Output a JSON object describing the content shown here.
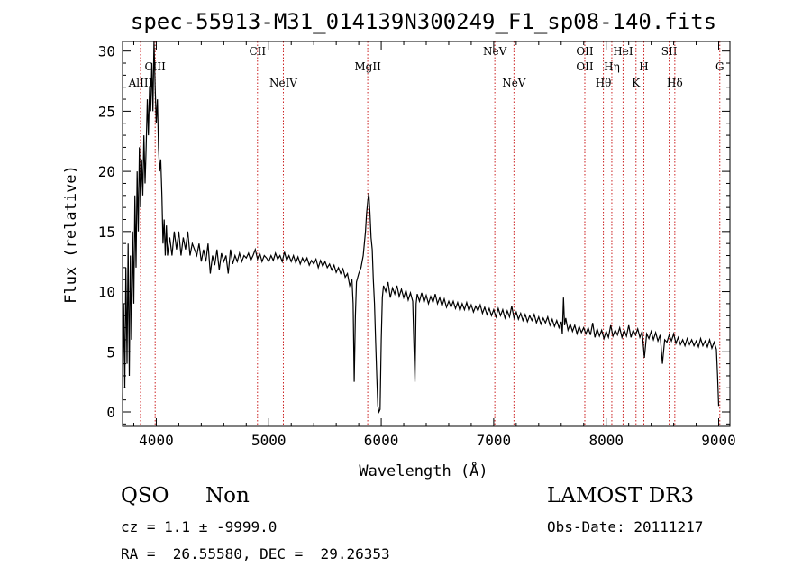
{
  "chart_data": {
    "type": "line",
    "title": "spec-55913-M31_014139N300249_F1_sp08-140.fits",
    "xlabel": "Wavelength (Å)",
    "ylabel": "Flux (relative)",
    "xlim": [
      3700,
      9100
    ],
    "ylim": [
      -1.2,
      30.8
    ],
    "x_ticks": [
      4000,
      5000,
      6000,
      7000,
      8000,
      9000
    ],
    "y_ticks": [
      0,
      5,
      10,
      15,
      20,
      25,
      30
    ],
    "line_color": "#000000",
    "marker_color": "#cc2222",
    "series": [
      {
        "points": [
          [
            3700,
            1
          ],
          [
            3710,
            9
          ],
          [
            3720,
            2
          ],
          [
            3730,
            12
          ],
          [
            3740,
            4
          ],
          [
            3750,
            14
          ],
          [
            3760,
            3
          ],
          [
            3770,
            13
          ],
          [
            3780,
            6
          ],
          [
            3790,
            15
          ],
          [
            3800,
            9
          ],
          [
            3810,
            18
          ],
          [
            3820,
            12
          ],
          [
            3830,
            20
          ],
          [
            3840,
            15
          ],
          [
            3850,
            22
          ],
          [
            3860,
            17
          ],
          [
            3870,
            21
          ],
          [
            3880,
            18
          ],
          [
            3890,
            23
          ],
          [
            3900,
            19
          ],
          [
            3910,
            22
          ],
          [
            3920,
            26
          ],
          [
            3930,
            23
          ],
          [
            3940,
            27
          ],
          [
            3950,
            25
          ],
          [
            3960,
            29
          ],
          [
            3970,
            25
          ],
          [
            3980,
            31
          ],
          [
            3990,
            27
          ],
          [
            4000,
            24
          ],
          [
            4010,
            26
          ],
          [
            4020,
            22
          ],
          [
            4030,
            20
          ],
          [
            4040,
            21
          ],
          [
            4050,
            18
          ],
          [
            4060,
            14
          ],
          [
            4070,
            16
          ],
          [
            4080,
            13
          ],
          [
            4090,
            15.5
          ],
          [
            4100,
            13
          ],
          [
            4120,
            14.5
          ],
          [
            4140,
            13
          ],
          [
            4160,
            15
          ],
          [
            4180,
            13.5
          ],
          [
            4200,
            15
          ],
          [
            4220,
            13
          ],
          [
            4240,
            14.5
          ],
          [
            4260,
            13.5
          ],
          [
            4280,
            15
          ],
          [
            4300,
            13
          ],
          [
            4320,
            14
          ],
          [
            4340,
            13.5
          ],
          [
            4360,
            13
          ],
          [
            4380,
            14
          ],
          [
            4400,
            12.5
          ],
          [
            4420,
            13.5
          ],
          [
            4440,
            12.5
          ],
          [
            4460,
            14
          ],
          [
            4480,
            11.5
          ],
          [
            4500,
            13
          ],
          [
            4520,
            12.2
          ],
          [
            4540,
            13.5
          ],
          [
            4560,
            11.8
          ],
          [
            4580,
            13.2
          ],
          [
            4600,
            12.5
          ],
          [
            4620,
            13
          ],
          [
            4640,
            11.5
          ],
          [
            4660,
            13.5
          ],
          [
            4680,
            12.3
          ],
          [
            4700,
            13
          ],
          [
            4720,
            12.5
          ],
          [
            4740,
            13.2
          ],
          [
            4760,
            12.5
          ],
          [
            4780,
            13
          ],
          [
            4800,
            12.8
          ],
          [
            4820,
            13.2
          ],
          [
            4840,
            12.6
          ],
          [
            4860,
            13
          ],
          [
            4880,
            13.5
          ],
          [
            4900,
            12.7
          ],
          [
            4920,
            13.2
          ],
          [
            4940,
            12.5
          ],
          [
            4960,
            13
          ],
          [
            4980,
            12.8
          ],
          [
            5000,
            12.5
          ],
          [
            5020,
            13
          ],
          [
            5040,
            12.6
          ],
          [
            5060,
            13.2
          ],
          [
            5080,
            12.7
          ],
          [
            5100,
            13
          ],
          [
            5120,
            12.5
          ],
          [
            5140,
            13.3
          ],
          [
            5160,
            12.6
          ],
          [
            5180,
            13
          ],
          [
            5200,
            12.5
          ],
          [
            5220,
            13
          ],
          [
            5240,
            12.4
          ],
          [
            5260,
            12.9
          ],
          [
            5280,
            12.3
          ],
          [
            5300,
            12.8
          ],
          [
            5320,
            12.4
          ],
          [
            5340,
            12.8
          ],
          [
            5360,
            12.2
          ],
          [
            5380,
            12.6
          ],
          [
            5400,
            12.3
          ],
          [
            5420,
            12.7
          ],
          [
            5440,
            12
          ],
          [
            5460,
            12.6
          ],
          [
            5480,
            12.1
          ],
          [
            5500,
            12.5
          ],
          [
            5520,
            12
          ],
          [
            5540,
            12.3
          ],
          [
            5560,
            11.8
          ],
          [
            5580,
            12.2
          ],
          [
            5600,
            11.6
          ],
          [
            5620,
            12
          ],
          [
            5640,
            11.5
          ],
          [
            5660,
            11.9
          ],
          [
            5680,
            11.2
          ],
          [
            5700,
            11.5
          ],
          [
            5720,
            10.5
          ],
          [
            5740,
            11
          ],
          [
            5750,
            9
          ],
          [
            5760,
            2.5
          ],
          [
            5770,
            8
          ],
          [
            5780,
            10.8
          ],
          [
            5800,
            11.5
          ],
          [
            5820,
            12
          ],
          [
            5840,
            13
          ],
          [
            5860,
            15
          ],
          [
            5870,
            16.5
          ],
          [
            5880,
            17.5
          ],
          [
            5890,
            18.2
          ],
          [
            5900,
            16.5
          ],
          [
            5910,
            14.5
          ],
          [
            5920,
            13.5
          ],
          [
            5930,
            11
          ],
          [
            5940,
            9
          ],
          [
            5950,
            6
          ],
          [
            5960,
            3
          ],
          [
            5970,
            0.5
          ],
          [
            5980,
            0
          ],
          [
            5990,
            0.2
          ],
          [
            6000,
            6
          ],
          [
            6010,
            9.5
          ],
          [
            6020,
            10.5
          ],
          [
            6040,
            10
          ],
          [
            6060,
            10.8
          ],
          [
            6080,
            9.5
          ],
          [
            6100,
            10.3
          ],
          [
            6120,
            9.8
          ],
          [
            6140,
            10.5
          ],
          [
            6160,
            9.6
          ],
          [
            6180,
            10.2
          ],
          [
            6200,
            9.5
          ],
          [
            6220,
            10.1
          ],
          [
            6240,
            9.3
          ],
          [
            6260,
            9.9
          ],
          [
            6280,
            9.2
          ],
          [
            6300,
            2.5
          ],
          [
            6310,
            9
          ],
          [
            6320,
            9.8
          ],
          [
            6340,
            9.2
          ],
          [
            6360,
            9.9
          ],
          [
            6380,
            9.1
          ],
          [
            6400,
            9.7
          ],
          [
            6420,
            9
          ],
          [
            6440,
            9.6
          ],
          [
            6460,
            9.1
          ],
          [
            6480,
            9.8
          ],
          [
            6500,
            9
          ],
          [
            6520,
            9.5
          ],
          [
            6540,
            8.8
          ],
          [
            6560,
            9.4
          ],
          [
            6580,
            8.7
          ],
          [
            6600,
            9.2
          ],
          [
            6620,
            8.7
          ],
          [
            6640,
            9.2
          ],
          [
            6660,
            8.6
          ],
          [
            6680,
            9.1
          ],
          [
            6700,
            8.4
          ],
          [
            6720,
            9
          ],
          [
            6740,
            8.5
          ],
          [
            6760,
            9.1
          ],
          [
            6780,
            8.4
          ],
          [
            6800,
            8.9
          ],
          [
            6820,
            8.3
          ],
          [
            6840,
            8.8
          ],
          [
            6860,
            8.4
          ],
          [
            6880,
            8.9
          ],
          [
            6900,
            8.2
          ],
          [
            6920,
            8.7
          ],
          [
            6940,
            8.1
          ],
          [
            6960,
            8.6
          ],
          [
            6980,
            8
          ],
          [
            7000,
            8.5
          ],
          [
            7020,
            7.9
          ],
          [
            7040,
            8.6
          ],
          [
            7060,
            8
          ],
          [
            7080,
            8.5
          ],
          [
            7100,
            7.8
          ],
          [
            7120,
            8.4
          ],
          [
            7140,
            7.9
          ],
          [
            7160,
            8.8
          ],
          [
            7180,
            7.8
          ],
          [
            7200,
            8.3
          ],
          [
            7220,
            7.7
          ],
          [
            7240,
            8.2
          ],
          [
            7260,
            7.6
          ],
          [
            7280,
            8.1
          ],
          [
            7300,
            7.5
          ],
          [
            7320,
            8
          ],
          [
            7340,
            7.6
          ],
          [
            7360,
            8.1
          ],
          [
            7380,
            7.4
          ],
          [
            7400,
            7.9
          ],
          [
            7420,
            7.3
          ],
          [
            7440,
            7.8
          ],
          [
            7460,
            7.4
          ],
          [
            7480,
            7.9
          ],
          [
            7500,
            7.2
          ],
          [
            7520,
            7.7
          ],
          [
            7540,
            7.1
          ],
          [
            7560,
            7.6
          ],
          [
            7580,
            7
          ],
          [
            7600,
            7.5
          ],
          [
            7610,
            6.5
          ],
          [
            7620,
            9.5
          ],
          [
            7630,
            7.2
          ],
          [
            7640,
            7.8
          ],
          [
            7660,
            6.8
          ],
          [
            7680,
            7.3
          ],
          [
            7700,
            6.7
          ],
          [
            7720,
            7.2
          ],
          [
            7740,
            6.5
          ],
          [
            7760,
            7.1
          ],
          [
            7780,
            6.6
          ],
          [
            7800,
            7
          ],
          [
            7820,
            6.5
          ],
          [
            7840,
            7
          ],
          [
            7860,
            6.4
          ],
          [
            7880,
            7.4
          ],
          [
            7900,
            6.2
          ],
          [
            7920,
            6.9
          ],
          [
            7940,
            6.3
          ],
          [
            7960,
            6.8
          ],
          [
            7980,
            6.1
          ],
          [
            8000,
            6.7
          ],
          [
            8020,
            6.2
          ],
          [
            8040,
            7.2
          ],
          [
            8060,
            6.3
          ],
          [
            8080,
            6.8
          ],
          [
            8100,
            6.4
          ],
          [
            8120,
            7
          ],
          [
            8140,
            6.2
          ],
          [
            8160,
            6.8
          ],
          [
            8180,
            6.3
          ],
          [
            8200,
            7.2
          ],
          [
            8220,
            6.2
          ],
          [
            8240,
            6.8
          ],
          [
            8260,
            6.4
          ],
          [
            8280,
            6.9
          ],
          [
            8300,
            6.2
          ],
          [
            8320,
            6.7
          ],
          [
            8340,
            4.5
          ],
          [
            8360,
            6.5
          ],
          [
            8380,
            6.1
          ],
          [
            8400,
            6.7
          ],
          [
            8420,
            6
          ],
          [
            8440,
            6.6
          ],
          [
            8460,
            5.9
          ],
          [
            8480,
            6.4
          ],
          [
            8500,
            4
          ],
          [
            8520,
            6
          ],
          [
            8540,
            5.8
          ],
          [
            8560,
            6.4
          ],
          [
            8580,
            5.9
          ],
          [
            8600,
            6.5
          ],
          [
            8620,
            5.7
          ],
          [
            8640,
            6.2
          ],
          [
            8660,
            5.6
          ],
          [
            8680,
            6
          ],
          [
            8700,
            5.5
          ],
          [
            8720,
            6.1
          ],
          [
            8740,
            5.6
          ],
          [
            8760,
            6
          ],
          [
            8780,
            5.5
          ],
          [
            8800,
            5.9
          ],
          [
            8820,
            5.4
          ],
          [
            8840,
            6.1
          ],
          [
            8860,
            5.5
          ],
          [
            8880,
            5.9
          ],
          [
            8900,
            5.4
          ],
          [
            8920,
            6
          ],
          [
            8940,
            5.3
          ],
          [
            8960,
            5.8
          ],
          [
            8980,
            5.2
          ],
          [
            8990,
            3
          ],
          [
            9000,
            0.5
          ]
        ]
      }
    ],
    "lines": [
      {
        "label": "AlIII",
        "x": 3860,
        "row": 3
      },
      {
        "label": "CIII",
        "x": 3990,
        "row": 2
      },
      {
        "label": "CII",
        "x": 4900,
        "row": 1
      },
      {
        "label": "NeIV",
        "x": 5130,
        "row": 3
      },
      {
        "label": "MgII",
        "x": 5880,
        "row": 2
      },
      {
        "label": "NeV",
        "x": 7010,
        "row": 1
      },
      {
        "label": "NeV",
        "x": 7180,
        "row": 3
      },
      {
        "label": "OII",
        "x": 7810,
        "row": 1
      },
      {
        "label": "OII",
        "x": 7810,
        "row": 2
      },
      {
        "label": "Hθ",
        "x": 7975,
        "row": 3
      },
      {
        "label": "Hη",
        "x": 8050,
        "row": 2
      },
      {
        "label": "HeI",
        "x": 8150,
        "row": 1
      },
      {
        "label": "K",
        "x": 8265,
        "row": 3
      },
      {
        "label": "H",
        "x": 8335,
        "row": 2
      },
      {
        "label": "SII",
        "x": 8560,
        "row": 1
      },
      {
        "label": "Hδ",
        "x": 8610,
        "row": 3
      },
      {
        "label": "G",
        "x": 9010,
        "row": 2
      }
    ]
  },
  "info": {
    "class": "QSO",
    "subclass": "Non",
    "survey": "LAMOST DR3",
    "cz": "cz = 1.1 ± -9999.0",
    "obs_date": "Obs-Date: 20111217",
    "coords": "RA =  26.55580, DEC =  29.26353"
  }
}
